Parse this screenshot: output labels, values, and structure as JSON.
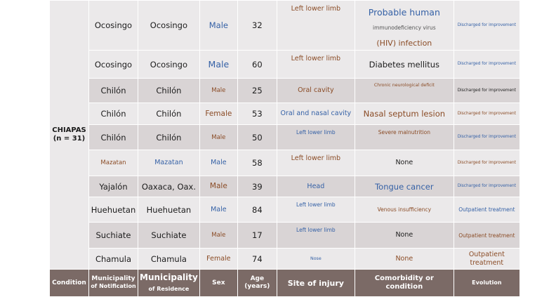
{
  "condition": {
    "name": "CHIAPAS",
    "count": "(n = 31)"
  },
  "rows": [
    {
      "notification": "Ocosingo",
      "residence": "Ocosingo",
      "sex": "Male",
      "age": "32",
      "site": "Left lower limb",
      "comorbidity": {
        "line1": "Probable human",
        "line2": "immunodeficiency virus",
        "line3": "(HIV) infection"
      },
      "evolution": "Discharged for improvement"
    },
    {
      "notification": "Ocosingo",
      "residence": "Ocosingo",
      "sex": "Male",
      "age": "60",
      "site": "Left lower limb",
      "comorbidity": "Diabetes mellitus",
      "evolution": "Discharged for improvement"
    },
    {
      "notification": "Chilón",
      "residence": "Chilón",
      "sex": "Male",
      "age": "25",
      "site": "Oral cavity",
      "comorbidity": "Chronic neurological deficit",
      "evolution": "Discharged for improvement"
    },
    {
      "notification": "Chilón",
      "residence": "Chilón",
      "sex": "Female",
      "age": "53",
      "site": "Oral and nasal cavity",
      "comorbidity": "Nasal septum lesion",
      "evolution": "Discharged for improvement"
    },
    {
      "notification": "Chilón",
      "residence": "Chilón",
      "sex": "Male",
      "age": "50",
      "site": "Left lower limb",
      "comorbidity": "Severe malnutrition",
      "evolution": "Discharged for improvement"
    },
    {
      "notification": "Mazatan",
      "residence": "Mazatan",
      "sex": "Male",
      "age": "58",
      "site": "Left lower limb",
      "comorbidity": "None",
      "evolution": "Discharged for improvement"
    },
    {
      "notification": "Yajalón",
      "residence": "Oaxaca, Oax.",
      "sex": "Male",
      "age": "39",
      "site": "Head",
      "comorbidity": "Tongue cancer",
      "evolution": "Discharged for improvement"
    },
    {
      "notification": "Huehuetan",
      "residence": "Huehuetan",
      "sex": "Male",
      "age": "84",
      "site": "Left lower limb",
      "comorbidity": "Venous insufficiency",
      "evolution": "Outpatient treatment"
    },
    {
      "notification": "Suchiate",
      "residence": "Suchiate",
      "sex": "Male",
      "age": "17",
      "site": "Left lower limb",
      "comorbidity": "None",
      "evolution": "Outpatient treatment"
    },
    {
      "notification": "Chamula",
      "residence": "Chamula",
      "sex": "Female",
      "age": "74",
      "site": "Nose",
      "comorbidity": "None",
      "evolution": "Outpatient treatment"
    }
  ],
  "header": {
    "condition": "Condition",
    "notification_1": "Municipality",
    "notification_2": "of Notification",
    "residence_1": "Municipality",
    "residence_2": "of Residence",
    "sex": "Sex",
    "age_1": "Age",
    "age_2": "(years)",
    "site": "Site of injury",
    "comorbidity": "Comorbidity or condition",
    "evolution": "Evolution"
  }
}
